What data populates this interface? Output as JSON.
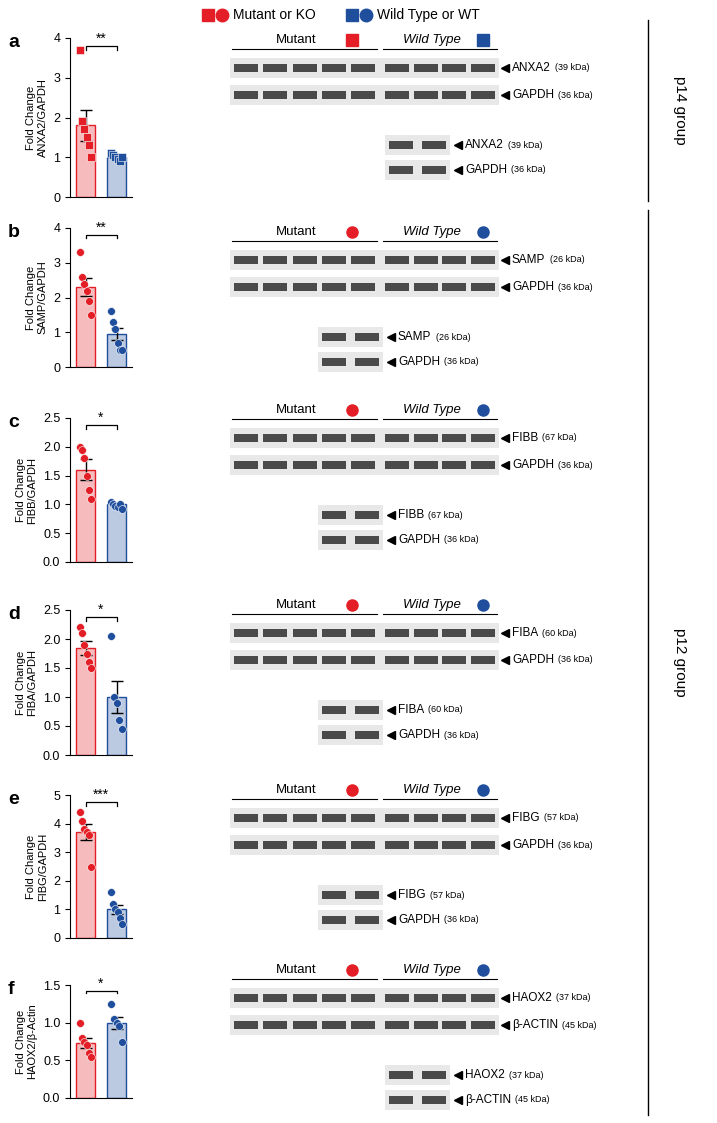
{
  "chart_data": [
    {
      "type": "bar",
      "title": "a",
      "ylabel": "Fold Change\nANXA2/GAPDH",
      "categories": [
        null,
        null
      ],
      "values": [
        1.8,
        1.0
      ],
      "errors": [
        0.38,
        0.05
      ],
      "points": [
        [
          3.7,
          1.9,
          1.7,
          1.5,
          1.3,
          1.0
        ],
        [
          1.1,
          1.05,
          1.0,
          0.95,
          0.9,
          1.0
        ]
      ],
      "colors": [
        "#e41e26",
        "#1f4e9d"
      ],
      "marker": "square",
      "significance": "**",
      "ylim": [
        0,
        4
      ],
      "yticks": [
        0,
        1,
        2,
        3,
        4
      ],
      "grid": false,
      "tick_labels": "y"
    },
    {
      "type": "bar",
      "title": "b",
      "ylabel": "Fold Change\nSAMP/GAPDH",
      "categories": [
        null,
        null
      ],
      "values": [
        2.3,
        0.95
      ],
      "errors": [
        0.25,
        0.17
      ],
      "points": [
        [
          3.3,
          2.6,
          2.4,
          2.2,
          1.9,
          1.5
        ],
        [
          1.6,
          1.3,
          1.1,
          0.7,
          0.5,
          0.5
        ]
      ],
      "colors": [
        "#e41e26",
        "#1f4e9d"
      ],
      "marker": "circle",
      "significance": "**",
      "ylim": [
        0,
        4
      ],
      "yticks": [
        0,
        1,
        2,
        3,
        4
      ],
      "grid": false,
      "tick_labels": "y"
    },
    {
      "type": "bar",
      "title": "c",
      "ylabel": "Fold Change\nFIBB/GAPDH",
      "categories": [
        null,
        null
      ],
      "values": [
        1.6,
        1.0
      ],
      "errors": [
        0.18,
        0.03
      ],
      "points": [
        [
          2.0,
          1.95,
          1.8,
          1.5,
          1.25,
          1.1
        ],
        [
          1.05,
          1.0,
          0.98,
          0.95,
          1.0,
          0.92
        ]
      ],
      "colors": [
        "#e41e26",
        "#1f4e9d"
      ],
      "marker": "circle",
      "significance": "*",
      "ylim": [
        0,
        2.5
      ],
      "yticks": [
        {
          "value": 0,
          "label": "0.0"
        },
        {
          "value": 0.5,
          "label": "0.5"
        },
        {
          "value": 1,
          "label": "1.0"
        },
        {
          "value": 1.5,
          "label": "1.5"
        },
        {
          "value": 2,
          "label": "2.0"
        },
        {
          "value": 2.5,
          "label": "2.5"
        }
      ],
      "grid": false,
      "tick_labels": "y"
    },
    {
      "type": "bar",
      "title": "d",
      "ylabel": "Fold Change\nFIBA/GAPDH",
      "categories": [
        null,
        null
      ],
      "values": [
        1.85,
        1.0
      ],
      "errors": [
        0.12,
        0.28
      ],
      "points": [
        [
          2.2,
          2.1,
          1.9,
          1.75,
          1.6,
          1.5
        ],
        [
          2.05,
          1.0,
          0.9,
          0.6,
          0.45
        ]
      ],
      "colors": [
        "#e41e26",
        "#1f4e9d"
      ],
      "marker": "circle",
      "significance": "*",
      "ylim": [
        0,
        2.5
      ],
      "yticks": [
        {
          "value": 0,
          "label": "0.0"
        },
        {
          "value": 0.5,
          "label": "0.5"
        },
        {
          "value": 1,
          "label": "1.0"
        },
        {
          "value": 1.5,
          "label": "1.5"
        },
        {
          "value": 2,
          "label": "2.0"
        },
        {
          "value": 2.5,
          "label": "2.5"
        }
      ],
      "grid": false,
      "tick_labels": "y"
    },
    {
      "type": "bar",
      "title": "e",
      "ylabel": "Fold Change\nFIBG/GAPDH",
      "categories": [
        null,
        null
      ],
      "values": [
        3.7,
        1.0
      ],
      "errors": [
        0.28,
        0.17
      ],
      "points": [
        [
          4.4,
          4.1,
          3.8,
          3.7,
          3.6,
          2.5
        ],
        [
          1.6,
          1.2,
          1.0,
          0.9,
          0.7,
          0.5
        ]
      ],
      "colors": [
        "#e41e26",
        "#1f4e9d"
      ],
      "marker": "circle",
      "significance": "***",
      "ylim": [
        0,
        5
      ],
      "yticks": [
        0,
        1,
        2,
        3,
        4,
        5
      ],
      "grid": false,
      "tick_labels": "y"
    },
    {
      "type": "bar",
      "title": "f",
      "ylabel": "Fold Change\nHAOX2/β-Actin",
      "categories": [
        null,
        null
      ],
      "values": [
        0.73,
        1.0
      ],
      "errors": [
        0.07,
        0.08
      ],
      "points": [
        [
          1.0,
          0.8,
          0.75,
          0.7,
          0.6,
          0.55
        ],
        [
          1.25,
          1.05,
          1.0,
          0.95,
          0.75
        ]
      ],
      "colors": [
        "#e41e26",
        "#1f4e9d"
      ],
      "marker": "circle",
      "significance": "*",
      "ylim": [
        0,
        1.5
      ],
      "yticks": [
        {
          "value": 0,
          "label": "0.0"
        },
        {
          "value": 0.5,
          "label": "0.5"
        },
        {
          "value": 1,
          "label": "1.0"
        },
        {
          "value": 1.5,
          "label": "1.5"
        }
      ],
      "grid": false,
      "tick_labels": "y"
    }
  ],
  "legend_header": [
    "Mutant or KO",
    "Wild Type or WT"
  ],
  "blots": [
    {
      "header": [
        "Mutant",
        "Wild Type"
      ],
      "bands": [
        {
          "name": "ANXA2",
          "size": "(39 kDa)"
        },
        {
          "name": "GAPDH",
          "size": "(36 kDa)"
        }
      ],
      "inset": [
        {
          "name": "ANXA2",
          "size": "(39 kDa)"
        },
        {
          "name": "GAPDH",
          "size": "(36 kDa)"
        }
      ]
    },
    {
      "header": [
        "Mutant",
        "Wild Type"
      ],
      "bands": [
        {
          "name": "SAMP",
          "size": "(26 kDa)"
        },
        {
          "name": "GAPDH",
          "size": "(36 kDa)"
        }
      ],
      "inset": [
        {
          "name": "SAMP",
          "size": "(26 kDa)"
        },
        {
          "name": "GAPDH",
          "size": "(36 kDa)"
        }
      ]
    },
    {
      "header": [
        "Mutant",
        "Wild Type"
      ],
      "bands": [
        {
          "name": "FIBB",
          "size": "(67 kDa)"
        },
        {
          "name": "GAPDH",
          "size": "(36 kDa)"
        }
      ],
      "inset": [
        {
          "name": "FIBB",
          "size": "(67 kDa)"
        },
        {
          "name": "GAPDH",
          "size": "(36 kDa)"
        }
      ]
    },
    {
      "header": [
        "Mutant",
        "Wild Type"
      ],
      "bands": [
        {
          "name": "FIBA",
          "size": "(60 kDa)"
        },
        {
          "name": "GAPDH",
          "size": "(36 kDa)"
        }
      ],
      "inset": [
        {
          "name": "FIBA",
          "size": "(60 kDa)"
        },
        {
          "name": "GAPDH",
          "size": "(36 kDa)"
        }
      ]
    },
    {
      "header": [
        "Mutant",
        "Wild Type"
      ],
      "bands": [
        {
          "name": "FIBG",
          "size": "(57 kDa)"
        },
        {
          "name": "GAPDH",
          "size": "(36 kDa)"
        }
      ],
      "inset": [
        {
          "name": "FIBG",
          "size": "(57 kDa)"
        },
        {
          "name": "GAPDH",
          "size": "(36 kDa)"
        }
      ]
    },
    {
      "header": [
        "Mutant",
        "Wild Type"
      ],
      "bands": [
        {
          "name": "HAOX2",
          "size": "(37 kDa)"
        },
        {
          "name": "β-ACTIN",
          "size": "(45 kDa)"
        }
      ],
      "inset": [
        {
          "name": "HAOX2",
          "size": "(37 kDa)"
        },
        {
          "name": "β-ACTIN",
          "size": "(45 kDa)"
        }
      ]
    }
  ],
  "groups": [
    {
      "label": "p14 group",
      "panels": [
        "a"
      ]
    },
    {
      "label": "p12 group",
      "panels": [
        "b",
        "c",
        "d",
        "e",
        "f"
      ]
    }
  ]
}
